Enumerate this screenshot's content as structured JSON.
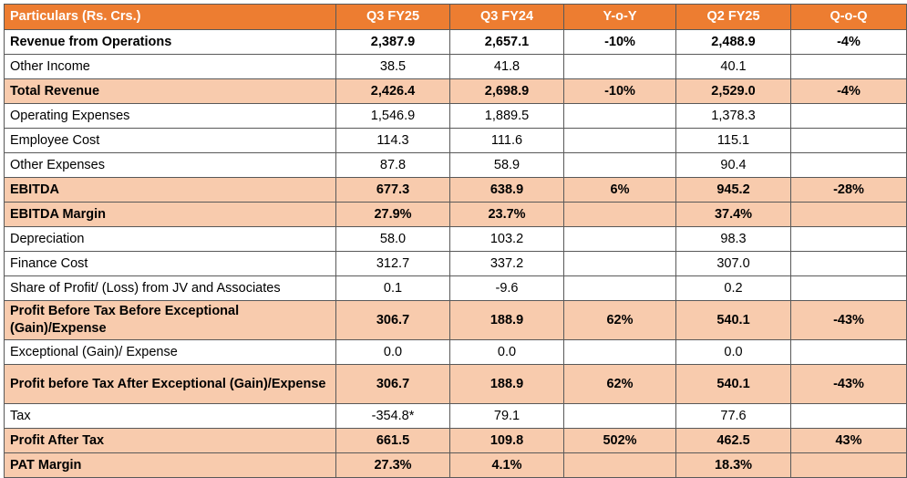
{
  "colors": {
    "header_bg": "#ed7d31",
    "highlight_bg": "#f8cbad"
  },
  "headers": [
    "Particulars (Rs. Crs.)",
    "Q3 FY25",
    "Q3 FY24",
    "Y-o-Y",
    "Q2 FY25",
    "Q-o-Q"
  ],
  "rows": [
    {
      "label": "Revenue from Operations",
      "q3fy25": "2,387.9",
      "q3fy24": "2,657.1",
      "yoy": "-10%",
      "q2fy25": "2,488.9",
      "qoq": "-4%"
    },
    {
      "label": "Other Income",
      "q3fy25": "38.5",
      "q3fy24": "41.8",
      "yoy": "",
      "q2fy25": "40.1",
      "qoq": ""
    },
    {
      "label": "Total Revenue",
      "q3fy25": "2,426.4",
      "q3fy24": "2,698.9",
      "yoy": "-10%",
      "q2fy25": "2,529.0",
      "qoq": "-4%"
    },
    {
      "label": "Operating Expenses",
      "q3fy25": "1,546.9",
      "q3fy24": "1,889.5",
      "yoy": "",
      "q2fy25": "1,378.3",
      "qoq": ""
    },
    {
      "label": "Employee Cost",
      "q3fy25": "114.3",
      "q3fy24": "111.6",
      "yoy": "",
      "q2fy25": "115.1",
      "qoq": ""
    },
    {
      "label": "Other Expenses",
      "q3fy25": "87.8",
      "q3fy24": "58.9",
      "yoy": "",
      "q2fy25": "90.4",
      "qoq": ""
    },
    {
      "label": "EBITDA",
      "q3fy25": "677.3",
      "q3fy24": "638.9",
      "yoy": "6%",
      "q2fy25": "945.2",
      "qoq": "-28%"
    },
    {
      "label": "EBITDA Margin",
      "q3fy25": "27.9%",
      "q3fy24": "23.7%",
      "yoy": "",
      "q2fy25": "37.4%",
      "qoq": ""
    },
    {
      "label": "Depreciation",
      "q3fy25": "58.0",
      "q3fy24": "103.2",
      "yoy": "",
      "q2fy25": "98.3",
      "qoq": ""
    },
    {
      "label": "Finance Cost",
      "q3fy25": "312.7",
      "q3fy24": "337.2",
      "yoy": "",
      "q2fy25": "307.0",
      "qoq": ""
    },
    {
      "label": "Share of Profit/ (Loss) from JV and Associates",
      "q3fy25": "0.1",
      "q3fy24": "-9.6",
      "yoy": "",
      "q2fy25": "0.2",
      "qoq": ""
    },
    {
      "label": "Profit Before Tax Before Exceptional (Gain)/Expense",
      "q3fy25": "306.7",
      "q3fy24": "188.9",
      "yoy": "62%",
      "q2fy25": "540.1",
      "qoq": "-43%"
    },
    {
      "label": "Exceptional (Gain)/ Expense",
      "q3fy25": "0.0",
      "q3fy24": "0.0",
      "yoy": "",
      "q2fy25": "0.0",
      "qoq": ""
    },
    {
      "label": "Profit before Tax After Exceptional (Gain)/Expense",
      "q3fy25": "306.7",
      "q3fy24": "188.9",
      "yoy": "62%",
      "q2fy25": "540.1",
      "qoq": "-43%"
    },
    {
      "label": "Tax",
      "q3fy25": "-354.8*",
      "q3fy24": "79.1",
      "yoy": "",
      "q2fy25": "77.6",
      "qoq": ""
    },
    {
      "label": "Profit After Tax",
      "q3fy25": "661.5",
      "q3fy24": "109.8",
      "yoy": "502%",
      "q2fy25": "462.5",
      "qoq": "43%"
    },
    {
      "label": "PAT Margin",
      "q3fy25": "27.3%",
      "q3fy24": "4.1%",
      "yoy": "",
      "q2fy25": "18.3%",
      "qoq": ""
    }
  ]
}
